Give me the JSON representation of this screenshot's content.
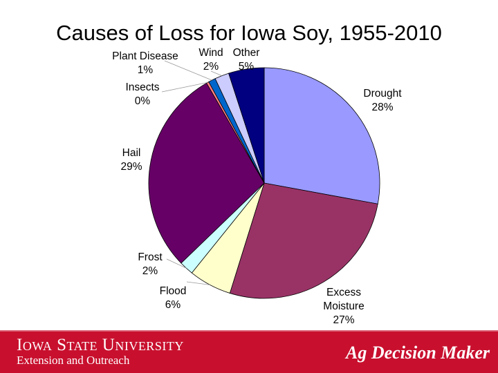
{
  "title": "Causes of Loss for Iowa Soy, 1955-2010",
  "chart_data": {
    "type": "pie",
    "title": "Causes of Loss for Iowa Soy, 1955-2010",
    "slices": [
      {
        "name": "Drought",
        "value": 28,
        "label": "28%",
        "color": "#9999ff"
      },
      {
        "name": "Excess Moisture",
        "value": 27,
        "label": "27%",
        "color": "#993366"
      },
      {
        "name": "Flood",
        "value": 6,
        "label": "6%",
        "color": "#ffffcc"
      },
      {
        "name": "Frost",
        "value": 2,
        "label": "2%",
        "color": "#ccffff"
      },
      {
        "name": "Hail",
        "value": 29,
        "label": "29%",
        "color": "#660066"
      },
      {
        "name": "Insects",
        "value": 0,
        "label": "0%",
        "color": "#ff8080"
      },
      {
        "name": "Plant Disease",
        "value": 1,
        "label": "1%",
        "color": "#0066cc"
      },
      {
        "name": "Wind",
        "value": 2,
        "label": "2%",
        "color": "#ccccff"
      },
      {
        "name": "Other",
        "value": 5,
        "label": "5%",
        "color": "#000080"
      }
    ]
  },
  "footer": {
    "university": "Iowa State University",
    "subtitle": "Extension and Outreach",
    "brand": "Ag Decision Maker",
    "color": "#c8102e"
  }
}
